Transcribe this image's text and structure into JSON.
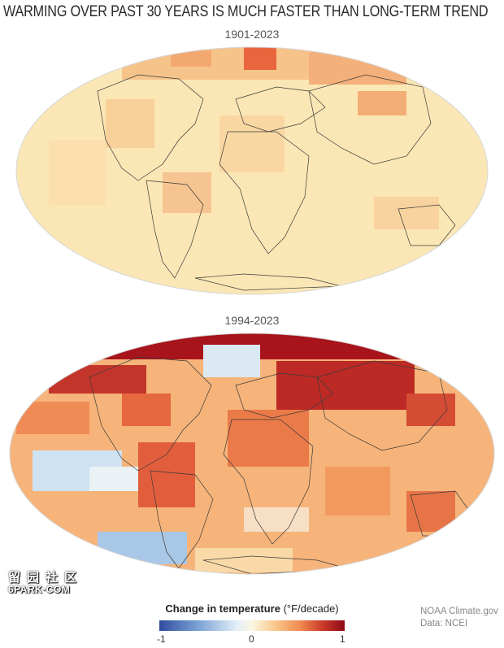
{
  "headline": "WARMING OVER PAST 30 YEARS IS MUCH FASTER THAN LONG-TERM TREND",
  "maps": [
    {
      "period": "1901-2023",
      "base_color": "#fbe7b5",
      "style": "mild"
    },
    {
      "period": "1994-2023",
      "base_color": "#f6b47a",
      "style": "intense"
    }
  ],
  "legend": {
    "title_bold": "Change in temperature",
    "title_unit": " (°F/decade)",
    "min_label": "-1",
    "mid_label": "0",
    "max_label": "1",
    "colors": [
      "#2f4da0",
      "#e4eff7",
      "#fbf6e1",
      "#ef8a4e",
      "#8e0a18"
    ]
  },
  "credits": {
    "line1": "NOAA Climate.gov",
    "line2": "Data: NCEI"
  },
  "watermark": {
    "line1": "留园社区",
    "line2": "6PARK·COM"
  }
}
